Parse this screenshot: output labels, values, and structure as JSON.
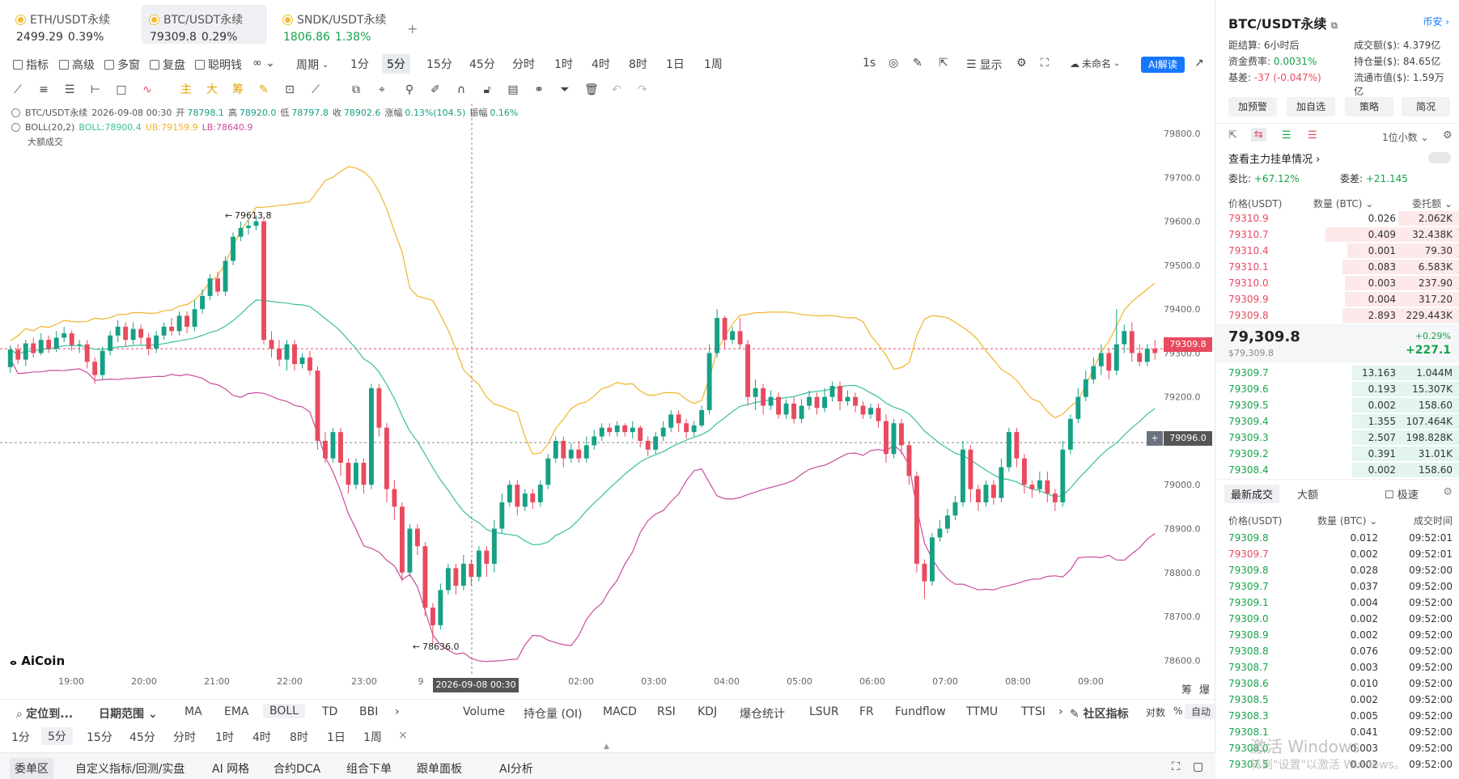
{
  "tabs": [
    {
      "name": "ETH/USDT永续",
      "price": "2499.29",
      "change": "0.39%",
      "active": false
    },
    {
      "name": "BTC/USDT永续",
      "price": "79309.8",
      "change": "0.29%",
      "active": true
    },
    {
      "name": "SNDK/USDT永续",
      "price": "1806.86",
      "change": "1.38%",
      "active": false
    }
  ],
  "tab_add": "+",
  "toolbar": {
    "indicator": "指标",
    "advanced": "高级",
    "multi_window": "多窗",
    "replay": "复盘",
    "smart_money": "聪明钱",
    "period": "周期",
    "timeframes": [
      "1分",
      "5分",
      "15分",
      "45分",
      "分时",
      "1时",
      "4时",
      "8时",
      "1日",
      "1周"
    ],
    "active_timeframe": "5分",
    "seconds": "1s",
    "display": "显示",
    "unnamed": "未命名",
    "ai": "AI解读"
  },
  "legend": {
    "symbol": "BTC/USDT永续",
    "datetime": "2026-09-08 00:30",
    "open_label": "开",
    "open": "78798.1",
    "high_label": "高",
    "high": "78920.0",
    "low_label": "低",
    "low": "78797.8",
    "close_label": "收",
    "close": "78902.6",
    "change_label": "涨幅",
    "change": "0.13%(104.5)",
    "amp_label": "振幅",
    "amp": "0.16%",
    "boll_name": "BOLL(20,2)",
    "boll": "BOLL:78900.4",
    "ub": "UB:79159.9",
    "lb": "LB:78640.9",
    "big_trades": "大额成交"
  },
  "chart_data": {
    "type": "candlestick",
    "y_ticks": [
      "79800.0",
      "79700.0",
      "79600.0",
      "79500.0",
      "79400.0",
      "79300.0",
      "79200.0",
      "79100.0",
      "79000.0",
      "78900.0",
      "78800.0",
      "78700.0",
      "78600.0"
    ],
    "x_ticks": [
      "19:00",
      "20:00",
      "21:00",
      "22:00",
      "23:00",
      "9",
      "2026-09-08 00:30",
      "02:00",
      "03:00",
      "04:00",
      "05:00",
      "06:00",
      "07:00",
      "08:00",
      "09:00"
    ],
    "ylim": [
      78560,
      79850
    ],
    "high_annotation": "79613.8",
    "low_annotation": "78636.0",
    "last_price": "79309.8",
    "crosshair_price": "79096.0",
    "crosshair_time": "2026-09-08 00:30",
    "colors": {
      "up": "#16a085",
      "down": "#e84a5f",
      "ub": "#f0b429",
      "mid": "#3bbf9a",
      "lb": "#c94c9c"
    },
    "candles": [
      [
        79268,
        79308,
        79255,
        79318
      ],
      [
        79308,
        79285,
        79275,
        79320
      ],
      [
        79285,
        79322,
        79270,
        79330
      ],
      [
        79322,
        79300,
        79290,
        79335
      ],
      [
        79300,
        79330,
        79295,
        79345
      ],
      [
        79330,
        79310,
        79300,
        79340
      ],
      [
        79310,
        79335,
        79302,
        79350
      ],
      [
        79335,
        79345,
        79325,
        79360
      ],
      [
        79345,
        79318,
        79305,
        79352
      ],
      [
        79318,
        79320,
        79300,
        79330
      ],
      [
        79320,
        79280,
        79265,
        79330
      ],
      [
        79280,
        79250,
        79230,
        79290
      ],
      [
        79250,
        79305,
        79240,
        79315
      ],
      [
        79305,
        79340,
        79295,
        79350
      ],
      [
        79340,
        79360,
        79325,
        79375
      ],
      [
        79360,
        79330,
        79315,
        79370
      ],
      [
        79330,
        79355,
        79320,
        79370
      ],
      [
        79355,
        79335,
        79320,
        79365
      ],
      [
        79335,
        79310,
        79295,
        79345
      ],
      [
        79310,
        79340,
        79300,
        79350
      ],
      [
        79340,
        79360,
        79330,
        79370
      ],
      [
        79360,
        79350,
        79340,
        79380
      ],
      [
        79350,
        79385,
        79340,
        79395
      ],
      [
        79385,
        79360,
        79345,
        79395
      ],
      [
        79360,
        79400,
        79350,
        79420
      ],
      [
        79400,
        79430,
        79390,
        79445
      ],
      [
        79430,
        79470,
        79420,
        79480
      ],
      [
        79470,
        79440,
        79430,
        79485
      ],
      [
        79440,
        79510,
        79430,
        79520
      ],
      [
        79510,
        79565,
        79500,
        79575
      ],
      [
        79565,
        79585,
        79555,
        79600
      ],
      [
        79585,
        79590,
        79570,
        79605
      ],
      [
        79590,
        79600,
        79580,
        79613
      ],
      [
        79600,
        79330,
        79320,
        79610
      ],
      [
        79330,
        79310,
        79290,
        79350
      ],
      [
        79310,
        79285,
        79270,
        79330
      ],
      [
        79285,
        79320,
        79260,
        79330
      ],
      [
        79320,
        79275,
        79260,
        79330
      ],
      [
        79275,
        79290,
        79265,
        79300
      ],
      [
        79290,
        79260,
        79250,
        79305
      ],
      [
        79260,
        79100,
        79080,
        79270
      ],
      [
        79100,
        79060,
        79050,
        79120
      ],
      [
        79060,
        79120,
        79050,
        79130
      ],
      [
        79120,
        79050,
        79020,
        79130
      ],
      [
        79050,
        79000,
        78980,
        79060
      ],
      [
        79000,
        79050,
        78990,
        79060
      ],
      [
        79050,
        79000,
        78980,
        79060
      ],
      [
        79000,
        79220,
        78990,
        79230
      ],
      [
        79220,
        79130,
        79110,
        79230
      ],
      [
        79130,
        78990,
        78960,
        79140
      ],
      [
        78990,
        78950,
        78920,
        79010
      ],
      [
        78950,
        78800,
        78780,
        78960
      ],
      [
        78800,
        78900,
        78790,
        78910
      ],
      [
        78900,
        78860,
        78840,
        78910
      ],
      [
        78860,
        78720,
        78700,
        78870
      ],
      [
        78720,
        78680,
        78636,
        78730
      ],
      [
        78680,
        78760,
        78670,
        78775
      ],
      [
        78760,
        78810,
        78750,
        78820
      ],
      [
        78810,
        78770,
        78750,
        78820
      ],
      [
        78770,
        78820,
        78760,
        78840
      ],
      [
        78820,
        78790,
        78770,
        78830
      ],
      [
        78790,
        78850,
        78780,
        78860
      ],
      [
        78850,
        78820,
        78790,
        78860
      ],
      [
        78820,
        78900,
        78800,
        78920
      ],
      [
        78900,
        78960,
        78890,
        78980
      ],
      [
        78960,
        79000,
        78950,
        79010
      ],
      [
        79000,
        78950,
        78930,
        79010
      ],
      [
        78950,
        78980,
        78940,
        78990
      ],
      [
        78980,
        78960,
        78945,
        78990
      ],
      [
        78960,
        79000,
        78950,
        79010
      ],
      [
        79000,
        79060,
        78990,
        79070
      ],
      [
        79060,
        79100,
        79050,
        79110
      ],
      [
        79100,
        79060,
        79040,
        79110
      ],
      [
        79060,
        79080,
        79050,
        79095
      ],
      [
        79080,
        79060,
        79050,
        79100
      ],
      [
        79060,
        79090,
        79050,
        79110
      ],
      [
        79090,
        79110,
        79080,
        79125
      ],
      [
        79110,
        79130,
        79100,
        79140
      ],
      [
        79130,
        79120,
        79110,
        79140
      ],
      [
        79120,
        79135,
        79110,
        79145
      ],
      [
        79135,
        79120,
        79110,
        79140
      ],
      [
        79120,
        79130,
        79105,
        79145
      ],
      [
        79130,
        79100,
        79085,
        79135
      ],
      [
        79100,
        79080,
        79065,
        79110
      ],
      [
        79080,
        79110,
        79070,
        79120
      ],
      [
        79110,
        79130,
        79100,
        79145
      ],
      [
        79130,
        79160,
        79120,
        79170
      ],
      [
        79160,
        79140,
        79120,
        79170
      ],
      [
        79140,
        79120,
        79105,
        79150
      ],
      [
        79120,
        79135,
        79110,
        79145
      ],
      [
        79135,
        79170,
        79130,
        79180
      ],
      [
        79170,
        79300,
        79160,
        79320
      ],
      [
        79300,
        79380,
        79290,
        79400
      ],
      [
        79380,
        79330,
        79310,
        79385
      ],
      [
        79330,
        79350,
        79320,
        79360
      ],
      [
        79350,
        79320,
        79310,
        79380
      ],
      [
        79320,
        79200,
        79180,
        79330
      ],
      [
        79200,
        79220,
        79170,
        79240
      ],
      [
        79220,
        79180,
        79160,
        79230
      ],
      [
        79180,
        79200,
        79170,
        79215
      ],
      [
        79200,
        79160,
        79150,
        79210
      ],
      [
        79160,
        79185,
        79150,
        79195
      ],
      [
        79185,
        79150,
        79140,
        79200
      ],
      [
        79150,
        79180,
        79140,
        79195
      ],
      [
        79180,
        79200,
        79170,
        79215
      ],
      [
        79200,
        79175,
        79160,
        79210
      ],
      [
        79175,
        79200,
        79165,
        79220
      ],
      [
        79200,
        79225,
        79190,
        79235
      ],
      [
        79225,
        79190,
        79170,
        79235
      ],
      [
        79190,
        79200,
        79180,
        79215
      ],
      [
        79200,
        79180,
        79165,
        79210
      ],
      [
        79180,
        79160,
        79150,
        79190
      ],
      [
        79160,
        79175,
        79150,
        79185
      ],
      [
        79175,
        79145,
        79130,
        79185
      ],
      [
        79145,
        79070,
        79050,
        79160
      ],
      [
        79070,
        79140,
        79060,
        79150
      ],
      [
        79140,
        79090,
        79070,
        79150
      ],
      [
        79090,
        79020,
        79000,
        79100
      ],
      [
        79020,
        78820,
        78800,
        79030
      ],
      [
        78820,
        78780,
        78740,
        78830
      ],
      [
        78780,
        78880,
        78770,
        78890
      ],
      [
        78880,
        78900,
        78870,
        78920
      ],
      [
        78900,
        78930,
        78890,
        78945
      ],
      [
        78930,
        78960,
        78920,
        78975
      ],
      [
        78960,
        79080,
        78950,
        79100
      ],
      [
        79080,
        78990,
        78960,
        79090
      ],
      [
        78990,
        78960,
        78940,
        79000
      ],
      [
        78960,
        79000,
        78950,
        79010
      ],
      [
        79000,
        78970,
        78955,
        79010
      ],
      [
        78970,
        79040,
        78960,
        79060
      ],
      [
        79040,
        79120,
        79030,
        79130
      ],
      [
        79120,
        79060,
        79040,
        79130
      ],
      [
        79060,
        79000,
        78980,
        79070
      ],
      [
        79000,
        78990,
        78970,
        79010
      ],
      [
        78990,
        79010,
        78980,
        79030
      ],
      [
        79010,
        78980,
        78960,
        79030
      ],
      [
        78980,
        78960,
        78940,
        78990
      ],
      [
        78960,
        79080,
        78950,
        79100
      ],
      [
        79080,
        79150,
        79070,
        79160
      ],
      [
        79150,
        79200,
        79140,
        79220
      ],
      [
        79200,
        79240,
        79190,
        79260
      ],
      [
        79240,
        79270,
        79230,
        79290
      ],
      [
        79270,
        79300,
        79250,
        79320
      ],
      [
        79300,
        79260,
        79240,
        79310
      ],
      [
        79260,
        79320,
        79250,
        79400
      ],
      [
        79320,
        79350,
        79300,
        79365
      ],
      [
        79350,
        79300,
        79280,
        79370
      ],
      [
        79300,
        79280,
        79270,
        79320
      ],
      [
        79280,
        79310,
        79270,
        79320
      ],
      [
        79310,
        79300,
        79285,
        79330
      ]
    ]
  },
  "bottom_indicators": {
    "locate": "定位到...",
    "date_range": "日期范围",
    "main": [
      "MA",
      "EMA",
      "BOLL",
      "TD",
      "BBI"
    ],
    "active_main": "BOLL",
    "sub": [
      "Volume",
      "持仓量 (OI)",
      "MACD",
      "RSI",
      "KDJ",
      "爆仓统计",
      "LSUR",
      "FR",
      "Fundflow",
      "TTMU",
      "TTSI"
    ],
    "community": "社区指标",
    "log": "对数",
    "pct": "%",
    "auto": "自动",
    "chip": "筹",
    "burst": "爆"
  },
  "bottom_timeframes": [
    "1分",
    "5分",
    "15分",
    "45分",
    "分时",
    "1时",
    "4时",
    "8时",
    "1日",
    "1周"
  ],
  "footer_tabs": [
    "委单区",
    "自定义指标/回测/实盘",
    "AI 网格",
    "合约DCA",
    "组合下单",
    "跟单面板",
    "AI分析"
  ],
  "right": {
    "title": "BTC/USDT永续",
    "exchange": "币安",
    "info": [
      {
        "l": "距结算:",
        "lv": "6小时后",
        "r": "成交额($):",
        "rv": "4.379亿"
      },
      {
        "l": "资金费率:",
        "lv": "0.0031%",
        "r": "持仓量($):",
        "rv": "84.65亿"
      },
      {
        "l": "基差:",
        "lv": "-37 (-0.047%)",
        "r": "流通市值($):",
        "rv": "1.59万亿"
      }
    ],
    "buttons": [
      "加预警",
      "加自选",
      "策略",
      "简况"
    ],
    "decimals": "1位小数",
    "main_orders": "查看主力挂单情况",
    "ratio_label": "委比:",
    "ratio": "+67.12%",
    "diff_label": "委差:",
    "diff": "+21.145",
    "ob_header": {
      "price": "价格(USDT)",
      "qty": "数量 (BTC)",
      "amount": "委托额"
    },
    "asks": [
      {
        "p": "79310.9",
        "q": "0.026",
        "t": "2.062K",
        "w": 0.25
      },
      {
        "p": "79310.7",
        "q": "0.409",
        "t": "32.438K",
        "w": 0.55
      },
      {
        "p": "79310.4",
        "q": "0.001",
        "t": "79.30",
        "w": 0.46
      },
      {
        "p": "79310.1",
        "q": "0.083",
        "t": "6.583K",
        "w": 0.48
      },
      {
        "p": "79310.0",
        "q": "0.003",
        "t": "237.90",
        "w": 0.47
      },
      {
        "p": "79309.9",
        "q": "0.004",
        "t": "317.20",
        "w": 0.47
      },
      {
        "p": "79309.8",
        "q": "2.893",
        "t": "229.443K",
        "w": 0.48
      }
    ],
    "mid_price": "79,309.8",
    "mid_sub": "$79,309.8",
    "mid_pct": "+0.29%",
    "mid_chg": "+227.1",
    "bids": [
      {
        "p": "79309.7",
        "q": "13.163",
        "t": "1.044M",
        "w": 0.44
      },
      {
        "p": "79309.6",
        "q": "0.193",
        "t": "15.307K",
        "w": 0.44
      },
      {
        "p": "79309.5",
        "q": "0.002",
        "t": "158.60",
        "w": 0.44
      },
      {
        "p": "79309.4",
        "q": "1.355",
        "t": "107.464K",
        "w": 0.44
      },
      {
        "p": "79309.3",
        "q": "2.507",
        "t": "198.828K",
        "w": 0.44
      },
      {
        "p": "79309.2",
        "q": "0.391",
        "t": "31.01K",
        "w": 0.44
      },
      {
        "p": "79308.4",
        "q": "0.002",
        "t": "158.60",
        "w": 0.44
      }
    ],
    "trade_tabs": [
      "最新成交",
      "大额"
    ],
    "speed": "极速",
    "tr_header": {
      "price": "价格(USDT)",
      "qty": "数量 (BTC)",
      "time": "成交时间"
    },
    "trades": [
      {
        "p": "79309.8",
        "q": "0.012",
        "t": "09:52:01",
        "side": "buy"
      },
      {
        "p": "79309.7",
        "q": "0.002",
        "t": "09:52:01",
        "side": "sell"
      },
      {
        "p": "79309.8",
        "q": "0.028",
        "t": "09:52:00",
        "side": "buy"
      },
      {
        "p": "79309.7",
        "q": "0.037",
        "t": "09:52:00",
        "side": "buy"
      },
      {
        "p": "79309.1",
        "q": "0.004",
        "t": "09:52:00",
        "side": "buy"
      },
      {
        "p": "79309.0",
        "q": "0.002",
        "t": "09:52:00",
        "side": "buy"
      },
      {
        "p": "79308.9",
        "q": "0.002",
        "t": "09:52:00",
        "side": "buy"
      },
      {
        "p": "79308.8",
        "q": "0.076",
        "t": "09:52:00",
        "side": "buy"
      },
      {
        "p": "79308.7",
        "q": "0.003",
        "t": "09:52:00",
        "side": "buy"
      },
      {
        "p": "79308.6",
        "q": "0.010",
        "t": "09:52:00",
        "side": "buy"
      },
      {
        "p": "79308.5",
        "q": "0.002",
        "t": "09:52:00",
        "side": "buy"
      },
      {
        "p": "79308.3",
        "q": "0.005",
        "t": "09:52:00",
        "side": "buy"
      },
      {
        "p": "79308.1",
        "q": "0.041",
        "t": "09:52:00",
        "side": "buy"
      },
      {
        "p": "79308.0",
        "q": "0.003",
        "t": "09:52:00",
        "side": "buy"
      },
      {
        "p": "79307.5",
        "q": "0.002",
        "t": "09:52:00",
        "side": "buy"
      }
    ]
  },
  "watermark": "激活 Windows",
  "watermark_sub": "转到\"设置\"以激活 Windows。",
  "logo": "AiCoin"
}
